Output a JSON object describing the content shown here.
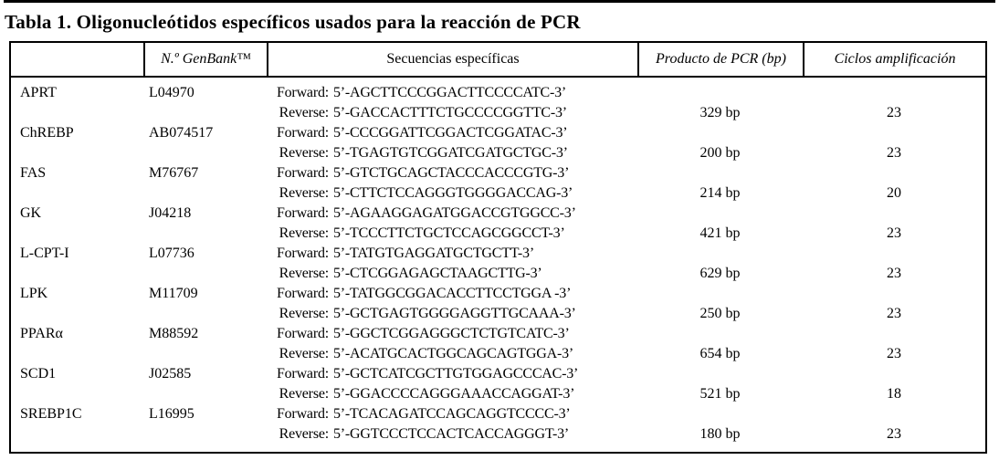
{
  "title": "Tabla 1. Oligonucleótidos específicos usados para la reacción de PCR",
  "table": {
    "headers": {
      "gene": "",
      "genbank": "N.º GenBank™",
      "sequences": "Secuencias específicas",
      "product": "Producto de PCR (bp)",
      "cycles": "Ciclos amplificación"
    },
    "labels": {
      "forward": "Forward:",
      "reverse": "Reverse:"
    },
    "rows": [
      {
        "gene": "APRT",
        "genbank": "L04970",
        "forward": "5’-AGCTTCCCGGACTTCCCCATC-3’",
        "reverse": "5’-GACCACTTTCTGCCCCGGTTC-3’",
        "product": "329 bp",
        "cycles": "23"
      },
      {
        "gene": "ChREBP",
        "genbank": "AB074517",
        "forward": "5’-CCCGGATTCGGACTCGGATAC-3’",
        "reverse": "5’-TGAGTGTCGGATCGATGCTGC-3’",
        "product": "200 bp",
        "cycles": "23"
      },
      {
        "gene": "FAS",
        "genbank": "M76767",
        "forward": "5’-GTCTGCAGCTACCCACCCGTG-3’",
        "reverse": "5’-CTTCTCCAGGGTGGGGACCAG-3’",
        "product": "214 bp",
        "cycles": "20"
      },
      {
        "gene": "GK",
        "genbank": "J04218",
        "forward": "5’-AGAAGGAGATGGACCGTGGCC-3’",
        "reverse": "5’-TCCCTTCTGCTCCAGCGGCCT-3’",
        "product": "421 bp",
        "cycles": "23"
      },
      {
        "gene": "L-CPT-I",
        "genbank": "L07736",
        "forward": "5’-TATGTGAGGATGCTGCTT-3’",
        "reverse": "5’-CTCGGAGAGCTAAGCTTG-3’",
        "product": "629 bp",
        "cycles": "23"
      },
      {
        "gene": "LPK",
        "genbank": "M11709",
        "forward": "5’-TATGGCGGACACCTTCCTGGA -3’",
        "reverse": "5’-GCTGAGTGGGGAGGTTGCAAA-3’",
        "product": "250 bp",
        "cycles": "23"
      },
      {
        "gene": "PPARα",
        "genbank": "M88592",
        "forward": "5’-GGCTCGGAGGGCTCTGTCATC-3’",
        "reverse": "5’-ACATGCACTGGCAGCAGTGGA-3’",
        "product": "654 bp",
        "cycles": "23"
      },
      {
        "gene": "SCD1",
        "genbank": "J02585",
        "forward": "5’-GCTCATCGCTTGTGGAGCCCAC-3’",
        "reverse": "5’-GGACCCCAGGGAAACCAGGAT-3’",
        "product": "521 bp",
        "cycles": "18"
      },
      {
        "gene": "SREBP1C",
        "genbank": "L16995",
        "forward": "5’-TCACAGATCCAGCAGGTCCCC-3’",
        "reverse": "5’-GGTCCCTCCACTCACCAGGGT-3’",
        "product": "180 bp",
        "cycles": "23"
      }
    ]
  }
}
